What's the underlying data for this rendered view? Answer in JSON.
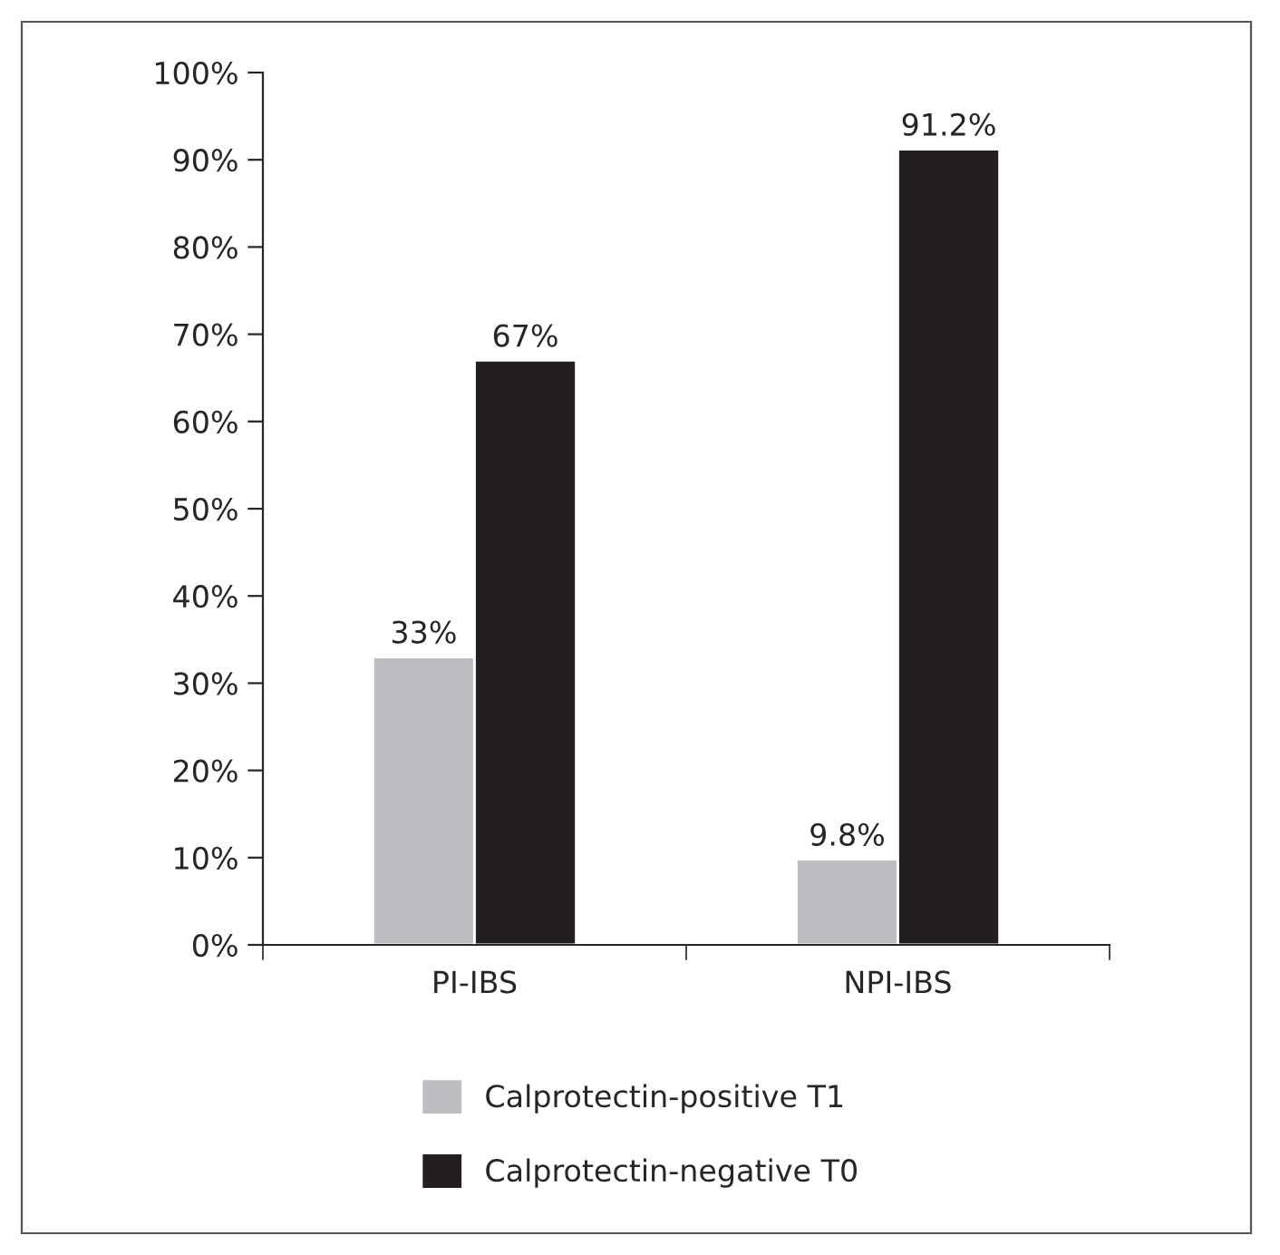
{
  "chart_data": {
    "type": "bar",
    "categories": [
      "PI-IBS",
      "NPI-IBS"
    ],
    "series": [
      {
        "name": "Calprotectin-positive T1",
        "color": "#bcbdc0",
        "values": [
          33,
          9.8
        ],
        "value_labels": [
          "33%",
          "9.8%"
        ]
      },
      {
        "name": "Calprotectin-negative T0",
        "color": "#231f20",
        "values": [
          67,
          91.2
        ],
        "value_labels": [
          "67%",
          "91.2%"
        ]
      }
    ],
    "ylim": [
      0,
      100
    ],
    "yticks": [
      {
        "value": 0,
        "label": "0%"
      },
      {
        "value": 10,
        "label": "10%"
      },
      {
        "value": 20,
        "label": "20%"
      },
      {
        "value": 30,
        "label": "30%"
      },
      {
        "value": 40,
        "label": "40%"
      },
      {
        "value": 50,
        "label": "50%"
      },
      {
        "value": 60,
        "label": "60%"
      },
      {
        "value": 70,
        "label": "70%"
      },
      {
        "value": 80,
        "label": "80%"
      },
      {
        "value": 90,
        "label": "90%"
      },
      {
        "value": 100,
        "label": "100%"
      }
    ],
    "grid": false,
    "legend": "bottom"
  }
}
